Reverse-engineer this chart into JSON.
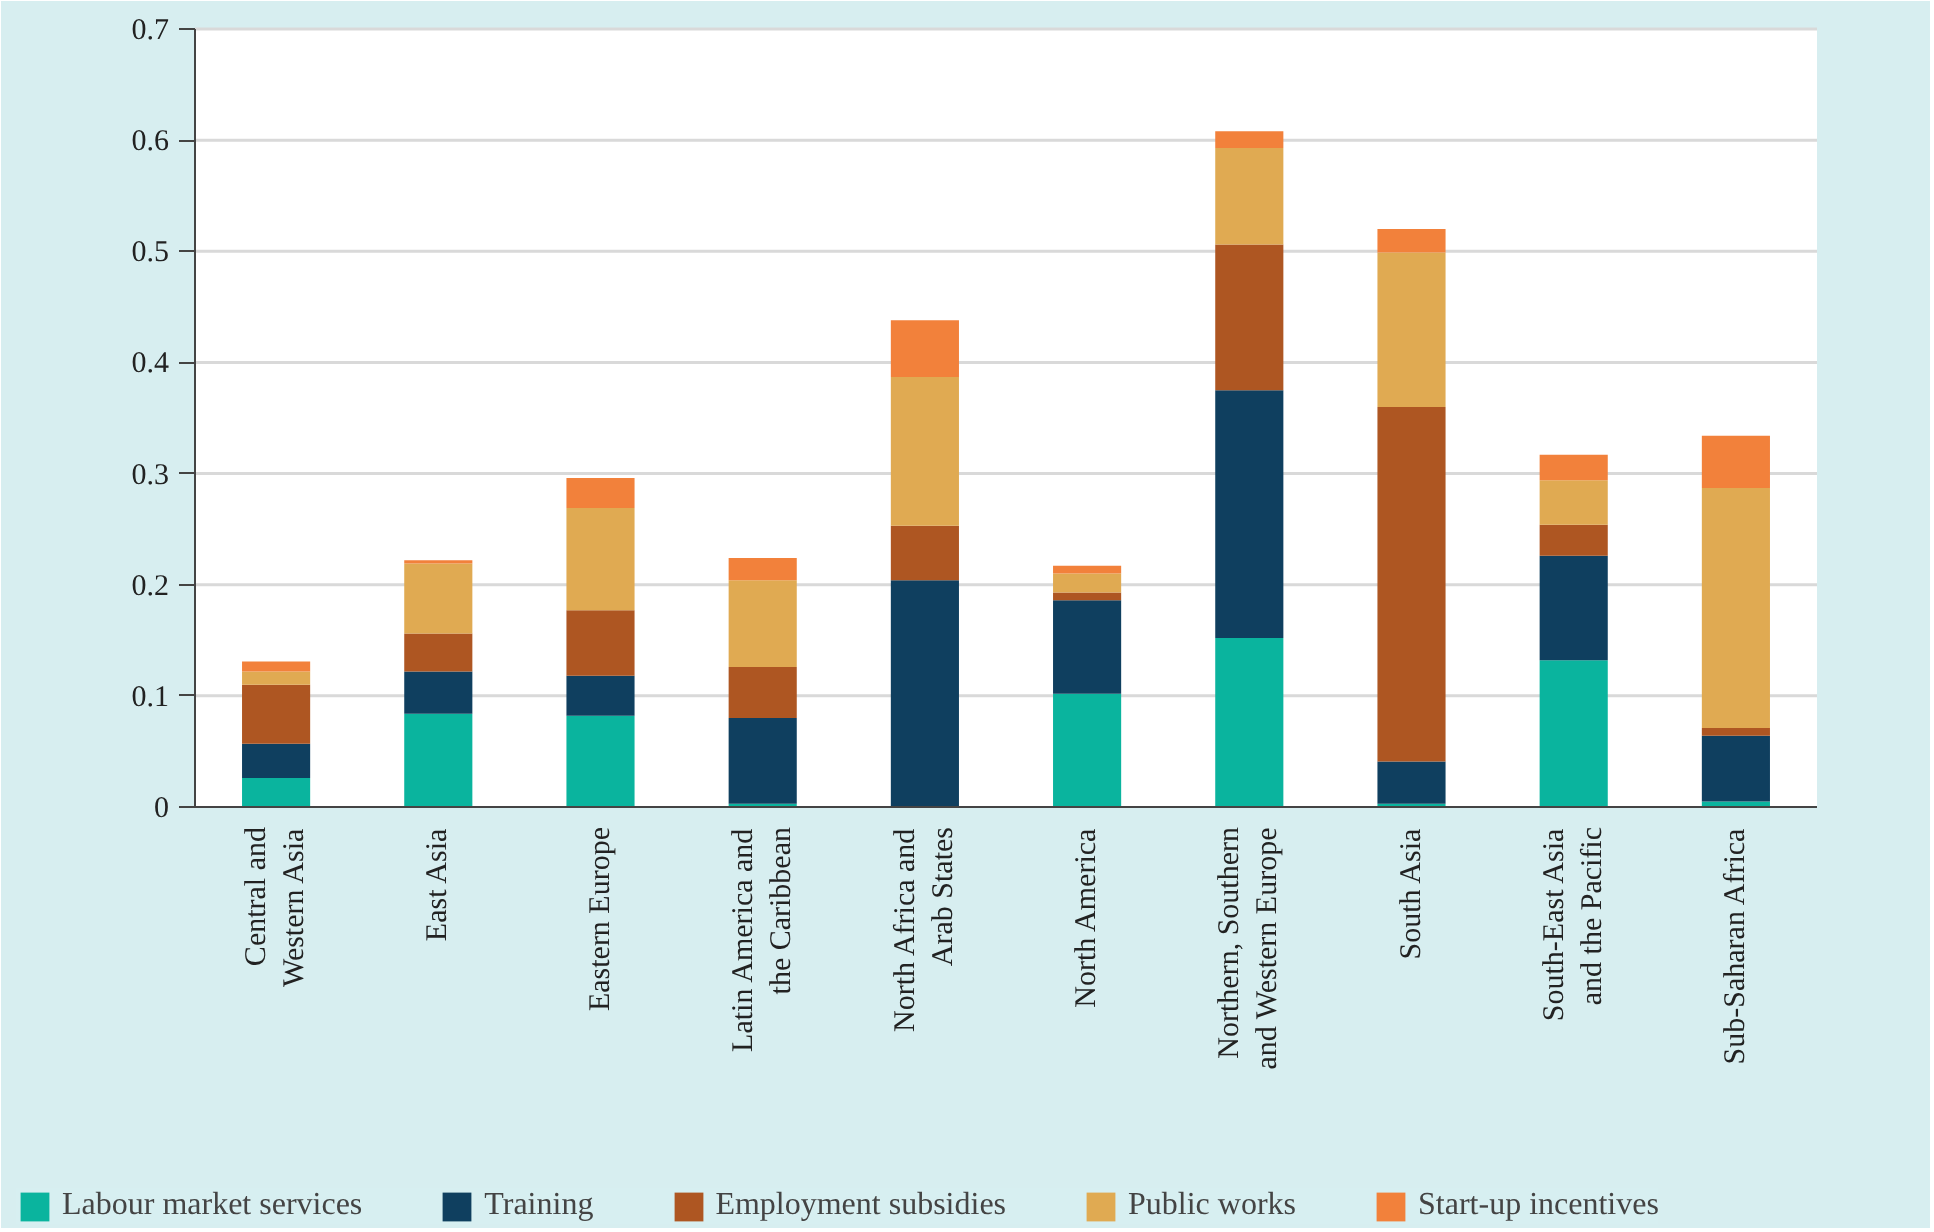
{
  "chart_data": {
    "type": "bar",
    "stacked": true,
    "categories": [
      "Central and Western Asia",
      "East Asia",
      "Eastern Europe",
      "Latin America and the Caribbean",
      "North Africa and Arab States",
      "North America",
      "Northern, Southern and Western Europe",
      "South Asia",
      "South-East Asia and the Pacific",
      "Sub-Saharan Africa"
    ],
    "series": [
      {
        "name": "Labour market services",
        "color": "#0ab49e",
        "values": [
          0.026,
          0.084,
          0.082,
          0.003,
          0,
          0.102,
          0.152,
          0.003,
          0.132,
          0.005
        ]
      },
      {
        "name": "Training",
        "color": "#0f3f5f",
        "values": [
          0.031,
          0.038,
          0.036,
          0.077,
          0.204,
          0.084,
          0.223,
          0.038,
          0.094,
          0.059
        ]
      },
      {
        "name": "Employment subsidies",
        "color": "#ae5622",
        "values": [
          0.053,
          0.034,
          0.059,
          0.046,
          0.049,
          0.007,
          0.131,
          0.319,
          0.028,
          0.007
        ]
      },
      {
        "name": "Public works",
        "color": "#e0aa52",
        "values": [
          0.012,
          0.063,
          0.092,
          0.078,
          0.134,
          0.017,
          0.087,
          0.139,
          0.04,
          0.216
        ]
      },
      {
        "name": "Start-up incentives",
        "color": "#f2813b",
        "values": [
          0.009,
          0.003,
          0.027,
          0.02,
          0.051,
          0.007,
          0.015,
          0.021,
          0.023,
          0.047
        ]
      }
    ],
    "ylim": [
      0,
      0.7
    ],
    "yticks": [
      0,
      0.1,
      0.2,
      0.3,
      0.4,
      0.5,
      0.6,
      0.7
    ],
    "grid": "y",
    "legend": "bottom"
  }
}
